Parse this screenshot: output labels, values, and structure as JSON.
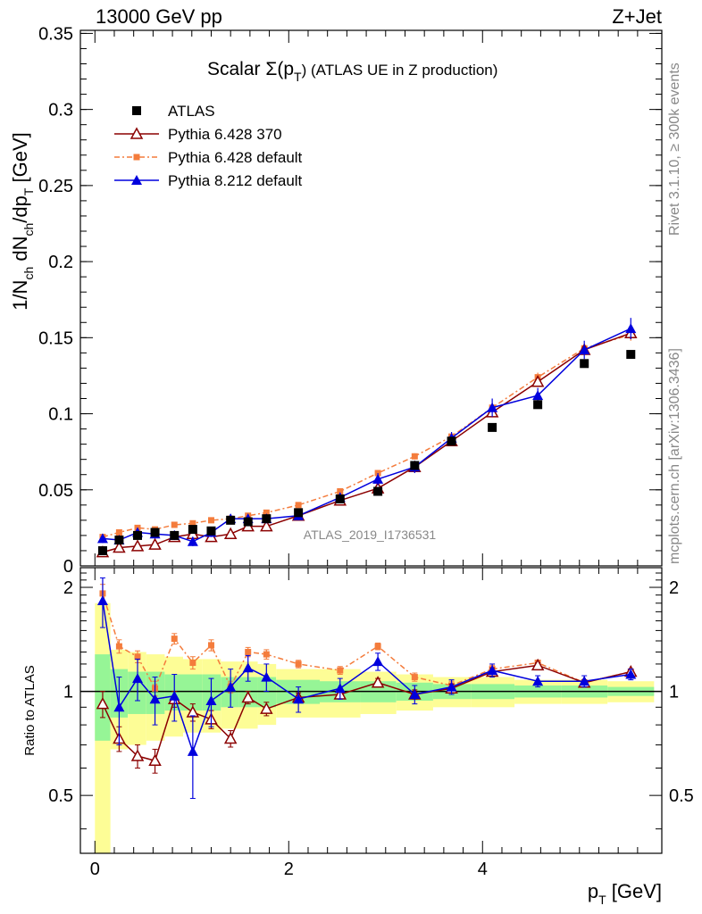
{
  "header": {
    "left": "13000 GeV pp",
    "right": "Z+Jet"
  },
  "side_labels": {
    "rivet": "Rivet 3.1.10, ≥ 300k events",
    "mcplots": "mcplots.cern.ch [arXiv:1306.3436]"
  },
  "chart_data": {
    "type": "scatter",
    "title": "Scalar Σ(p_T) (ATLAS UE in Z production)",
    "title_main": "Scalar Σ(p",
    "title_sub": "T",
    "title_rest": ") (ATLAS UE in Z production)",
    "watermark": "ATLAS_2019_I1736531",
    "xlabel": "p_T [GeV]",
    "xlabel_main": "p",
    "xlabel_sub": "T",
    "xlabel_rest": " [GeV]",
    "ylabel": "1/N_ch dN_ch/dp_T [GeV]",
    "ylabel_parts": [
      "1/N",
      "ch",
      " dN",
      "ch",
      "/dp",
      "T",
      " [GeV]"
    ],
    "ratio_ylabel": "Ratio to ATLAS",
    "xlim": [
      -0.15,
      5.85
    ],
    "ylim": [
      0,
      0.352
    ],
    "ratio_ylim": [
      0.34,
      2.28
    ],
    "x_ticks": [
      "0",
      "2",
      "4"
    ],
    "x_tick_values": [
      0,
      2,
      4
    ],
    "y_ticks": [
      "0",
      "0.05",
      "0.1",
      "0.15",
      "0.2",
      "0.25",
      "0.3",
      "0.35"
    ],
    "y_tick_values": [
      0,
      0.05,
      0.1,
      0.15,
      0.2,
      0.25,
      0.3,
      0.35
    ],
    "ratio_ticks": [
      "0.5",
      "1",
      "2"
    ],
    "ratio_tick_values": [
      0.5,
      1,
      2
    ],
    "x": [
      0.08,
      0.25,
      0.44,
      0.62,
      0.82,
      1.01,
      1.2,
      1.4,
      1.58,
      1.77,
      2.1,
      2.53,
      2.92,
      3.3,
      3.68,
      4.1,
      4.57,
      5.05,
      5.53
    ],
    "series": [
      {
        "name": "ATLAS",
        "color": "#000000",
        "marker": "square",
        "values": [
          0.01,
          0.017,
          0.02,
          0.022,
          0.02,
          0.024,
          0.023,
          0.03,
          0.029,
          0.031,
          0.035,
          0.044,
          0.049,
          0.066,
          0.082,
          0.091,
          0.106,
          0.133,
          0.139
        ],
        "ratio": [
          1,
          1,
          1,
          1,
          1,
          1,
          1,
          1,
          1,
          1,
          1,
          1,
          1,
          1,
          1,
          1,
          1,
          1,
          1
        ]
      },
      {
        "name": "Pythia 6.428 370",
        "color": "#8b0000",
        "marker": "triangle-open",
        "values": [
          0.009,
          0.012,
          0.013,
          0.014,
          0.019,
          0.021,
          0.019,
          0.021,
          0.026,
          0.026,
          0.033,
          0.043,
          0.051,
          0.065,
          0.082,
          0.101,
          0.121,
          0.142,
          0.153
        ],
        "ratio": [
          0.92,
          0.73,
          0.65,
          0.63,
          0.95,
          0.87,
          0.83,
          0.73,
          0.96,
          0.89,
          0.96,
          0.98,
          1.06,
          0.98,
          1.02,
          1.14,
          1.19,
          1.06,
          1.14
        ]
      },
      {
        "name": "Pythia 6.428 default",
        "color": "#f47c3c",
        "marker": "square-small",
        "values": [
          0.019,
          0.022,
          0.025,
          0.024,
          0.027,
          0.028,
          0.03,
          0.031,
          0.033,
          0.035,
          0.04,
          0.049,
          0.061,
          0.072,
          0.085,
          0.104,
          0.124,
          0.143,
          0.152
        ],
        "ratio": [
          1.92,
          1.35,
          1.26,
          1.02,
          1.42,
          1.21,
          1.36,
          1.03,
          1.3,
          1.28,
          1.2,
          1.15,
          1.35,
          1.1,
          1.04,
          1.16,
          1.21,
          1.06,
          1.14
        ]
      },
      {
        "name": "Pythia 8.212 default",
        "color": "#0000dd",
        "marker": "triangle",
        "values": [
          0.018,
          0.017,
          0.022,
          0.021,
          0.02,
          0.016,
          0.022,
          0.031,
          0.031,
          0.031,
          0.033,
          0.045,
          0.057,
          0.065,
          0.084,
          0.104,
          0.112,
          0.142,
          0.156
        ],
        "ratio": [
          1.83,
          0.9,
          1.09,
          0.95,
          0.97,
          0.67,
          0.94,
          1.03,
          1.17,
          1.1,
          0.95,
          1.02,
          1.22,
          0.98,
          1.03,
          1.15,
          1.07,
          1.07,
          1.12
        ]
      }
    ],
    "errors": {
      "Pythia 6.428 370": [
        0.001,
        0.001,
        0.001,
        0.001,
        0.001,
        0.001,
        0.001,
        0.001,
        0.001,
        0.001,
        0.001,
        0.001,
        0.002,
        0.002,
        0.002,
        0.003,
        0.003,
        0.003,
        0.004
      ],
      "Pythia 8.212 default": [
        0.003,
        0.003,
        0.003,
        0.003,
        0.003,
        0.003,
        0.003,
        0.003,
        0.003,
        0.003,
        0.003,
        0.003,
        0.004,
        0.004,
        0.004,
        0.006,
        0.005,
        0.006,
        0.007
      ],
      "Pythia 6.428 default": [
        0.001,
        0.001,
        0.001,
        0.001,
        0.001,
        0.001,
        0.001,
        0.001,
        0.001,
        0.001,
        0.001,
        0.001,
        0.002,
        0.002,
        0.002,
        0.003,
        0.003,
        0.003,
        0.004
      ]
    },
    "ratio_errors": {
      "Pythia 6.428 370": [
        0.08,
        0.06,
        0.05,
        0.05,
        0.05,
        0.05,
        0.05,
        0.04,
        0.04,
        0.04,
        0.03,
        0.03,
        0.03,
        0.03,
        0.03,
        0.03,
        0.02,
        0.02,
        0.02
      ],
      "Pythia 6.428 default": [
        0.12,
        0.06,
        0.05,
        0.05,
        0.05,
        0.05,
        0.05,
        0.04,
        0.04,
        0.04,
        0.03,
        0.03,
        0.03,
        0.03,
        0.03,
        0.03,
        0.02,
        0.02,
        0.02
      ],
      "Pythia 8.212 default": [
        0.3,
        0.2,
        0.15,
        0.15,
        0.15,
        0.18,
        0.15,
        0.13,
        0.1,
        0.1,
        0.08,
        0.07,
        0.07,
        0.06,
        0.05,
        0.05,
        0.04,
        0.04,
        0.04
      ]
    },
    "bands": {
      "green": [
        [
          0.72,
          1.28
        ],
        [
          0.84,
          1.16
        ],
        [
          0.86,
          1.14
        ],
        [
          0.86,
          1.14
        ],
        [
          0.88,
          1.12
        ],
        [
          0.88,
          1.12
        ],
        [
          0.88,
          1.12
        ],
        [
          0.9,
          1.1
        ],
        [
          0.9,
          1.1
        ],
        [
          0.9,
          1.1
        ],
        [
          0.92,
          1.08
        ],
        [
          0.93,
          1.07
        ],
        [
          0.93,
          1.07
        ],
        [
          0.94,
          1.06
        ],
        [
          0.95,
          1.05
        ],
        [
          0.95,
          1.05
        ],
        [
          0.96,
          1.04
        ],
        [
          0.96,
          1.04
        ],
        [
          0.97,
          1.03
        ]
      ],
      "yellow": [
        [
          0.2,
          1.8
        ],
        [
          0.68,
          1.32
        ],
        [
          0.7,
          1.3
        ],
        [
          0.72,
          1.28
        ],
        [
          0.74,
          1.26
        ],
        [
          0.76,
          1.24
        ],
        [
          0.76,
          1.24
        ],
        [
          0.78,
          1.22
        ],
        [
          0.78,
          1.22
        ],
        [
          0.8,
          1.2
        ],
        [
          0.84,
          1.16
        ],
        [
          0.84,
          1.16
        ],
        [
          0.86,
          1.14
        ],
        [
          0.88,
          1.12
        ],
        [
          0.9,
          1.1
        ],
        [
          0.9,
          1.1
        ],
        [
          0.92,
          1.08
        ],
        [
          0.92,
          1.08
        ],
        [
          0.93,
          1.07
        ]
      ]
    },
    "bin_edges": [
      0.0,
      0.16,
      0.34,
      0.53,
      0.72,
      0.91,
      1.11,
      1.3,
      1.49,
      1.68,
      1.87,
      2.32,
      2.74,
      3.11,
      3.49,
      3.88,
      4.33,
      4.81,
      5.29,
      5.77
    ],
    "legend_position": "top-left"
  }
}
